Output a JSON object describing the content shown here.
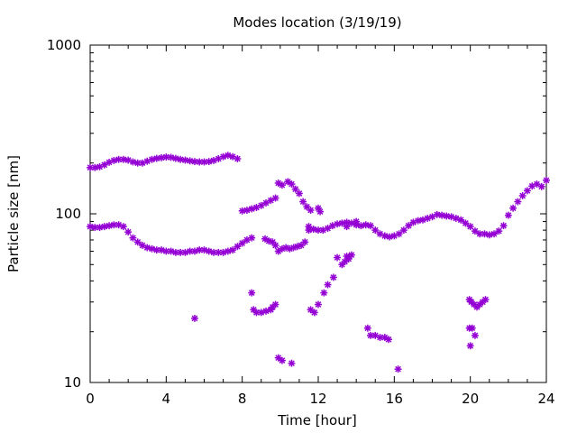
{
  "chart_data": {
    "type": "scatter",
    "title": "Modes location (3/19/19)",
    "xlabel": "Time [hour]",
    "ylabel": "Particle size [nm]",
    "xlim": [
      0,
      24
    ],
    "ylim": [
      10,
      1000
    ],
    "yscale": "log",
    "grid": false,
    "legend": "none",
    "marker_color": "#9400d3",
    "xticks": [
      0,
      4,
      8,
      12,
      16,
      20,
      24
    ],
    "xtick_labels": [
      "0",
      "4",
      "8",
      "12",
      "16",
      "20",
      "24"
    ],
    "yticks": [
      10,
      100,
      1000
    ],
    "ytick_labels": [
      "10",
      "100",
      "1000"
    ],
    "series": [
      {
        "points": [
          [
            0.0,
            188
          ],
          [
            0.25,
            188
          ],
          [
            0.5,
            190
          ],
          [
            0.75,
            195
          ],
          [
            1.0,
            202
          ],
          [
            1.25,
            207
          ],
          [
            1.5,
            210
          ],
          [
            1.75,
            210
          ],
          [
            2.0,
            208
          ],
          [
            2.25,
            203
          ],
          [
            2.5,
            200
          ],
          [
            2.75,
            200
          ],
          [
            3.0,
            205
          ],
          [
            3.25,
            210
          ],
          [
            3.5,
            213
          ],
          [
            3.75,
            215
          ],
          [
            4.0,
            217
          ],
          [
            4.25,
            216
          ],
          [
            4.5,
            213
          ],
          [
            4.75,
            210
          ],
          [
            5.0,
            208
          ],
          [
            5.25,
            206
          ],
          [
            5.5,
            204
          ],
          [
            5.75,
            203
          ],
          [
            6.0,
            203
          ],
          [
            6.25,
            204
          ],
          [
            6.5,
            207
          ],
          [
            6.75,
            212
          ],
          [
            7.0,
            218
          ],
          [
            7.25,
            222
          ],
          [
            7.5,
            218
          ],
          [
            7.75,
            212
          ],
          [
            0.0,
            84
          ],
          [
            0.25,
            83
          ],
          [
            0.5,
            83
          ],
          [
            0.75,
            84
          ],
          [
            1.0,
            85
          ],
          [
            1.25,
            86
          ],
          [
            1.5,
            86
          ],
          [
            1.75,
            84
          ],
          [
            2.0,
            78
          ],
          [
            2.25,
            72
          ],
          [
            2.5,
            68
          ],
          [
            2.75,
            65
          ],
          [
            3.0,
            63
          ],
          [
            3.25,
            62
          ],
          [
            3.5,
            61
          ],
          [
            3.75,
            61
          ],
          [
            4.0,
            60
          ],
          [
            4.25,
            60
          ],
          [
            4.5,
            59
          ],
          [
            4.75,
            59
          ],
          [
            5.0,
            59
          ],
          [
            5.25,
            60
          ],
          [
            5.5,
            60
          ],
          [
            5.75,
            61
          ],
          [
            6.0,
            61
          ],
          [
            6.25,
            60
          ],
          [
            6.5,
            59
          ],
          [
            6.75,
            59
          ],
          [
            7.0,
            59
          ],
          [
            7.25,
            60
          ],
          [
            7.5,
            61
          ],
          [
            7.75,
            64
          ],
          [
            8.0,
            67
          ],
          [
            8.25,
            70
          ],
          [
            8.5,
            72
          ],
          [
            8.0,
            104
          ],
          [
            8.25,
            105
          ],
          [
            8.5,
            107
          ],
          [
            8.75,
            109
          ],
          [
            9.0,
            112
          ],
          [
            9.25,
            116
          ],
          [
            9.5,
            120
          ],
          [
            9.75,
            124
          ],
          [
            9.9,
            152
          ],
          [
            10.1,
            148
          ],
          [
            10.4,
            155
          ],
          [
            10.6,
            150
          ],
          [
            10.8,
            140
          ],
          [
            11.0,
            132
          ],
          [
            11.2,
            118
          ],
          [
            11.4,
            110
          ],
          [
            11.6,
            105
          ],
          [
            12.0,
            108
          ],
          [
            12.1,
            103
          ],
          [
            8.5,
            34
          ],
          [
            8.6,
            27
          ],
          [
            8.75,
            26
          ],
          [
            9.0,
            26
          ],
          [
            9.25,
            26.5
          ],
          [
            9.5,
            27
          ],
          [
            9.6,
            28
          ],
          [
            9.75,
            29
          ],
          [
            9.2,
            71
          ],
          [
            9.4,
            69
          ],
          [
            9.6,
            68
          ],
          [
            9.75,
            65
          ],
          [
            9.9,
            60
          ],
          [
            10.1,
            62
          ],
          [
            10.3,
            63
          ],
          [
            10.5,
            62
          ],
          [
            10.7,
            63
          ],
          [
            10.9,
            64
          ],
          [
            11.1,
            65
          ],
          [
            11.3,
            68
          ],
          [
            11.5,
            80
          ],
          [
            9.9,
            14
          ],
          [
            10.1,
            13.5
          ],
          [
            10.6,
            13
          ],
          [
            5.5,
            24
          ],
          [
            16.2,
            12
          ],
          [
            11.5,
            84
          ],
          [
            11.75,
            81
          ],
          [
            12.0,
            80
          ],
          [
            12.25,
            80
          ],
          [
            12.5,
            82
          ],
          [
            12.75,
            85
          ],
          [
            13.0,
            87
          ],
          [
            13.25,
            88
          ],
          [
            13.5,
            89
          ],
          [
            13.75,
            88
          ],
          [
            14.0,
            86
          ],
          [
            14.25,
            85
          ],
          [
            14.5,
            86
          ],
          [
            14.75,
            85
          ],
          [
            15.0,
            80
          ],
          [
            15.25,
            76
          ],
          [
            15.5,
            74
          ],
          [
            15.75,
            73
          ],
          [
            16.0,
            74
          ],
          [
            16.25,
            76
          ],
          [
            16.5,
            80
          ],
          [
            16.75,
            85
          ],
          [
            17.0,
            89
          ],
          [
            17.25,
            91
          ],
          [
            17.5,
            92
          ],
          [
            17.75,
            94
          ],
          [
            18.0,
            96
          ],
          [
            18.25,
            99
          ],
          [
            18.5,
            98
          ],
          [
            18.75,
            97
          ],
          [
            19.0,
            96
          ],
          [
            19.25,
            94
          ],
          [
            19.5,
            92
          ],
          [
            19.75,
            88
          ],
          [
            20.0,
            84
          ],
          [
            20.25,
            79
          ],
          [
            20.5,
            76
          ],
          [
            20.75,
            76
          ],
          [
            21.0,
            75
          ],
          [
            21.25,
            76
          ],
          [
            21.5,
            79
          ],
          [
            21.75,
            85
          ],
          [
            22.0,
            98
          ],
          [
            22.25,
            108
          ],
          [
            22.5,
            118
          ],
          [
            22.75,
            128
          ],
          [
            23.0,
            137
          ],
          [
            23.25,
            146
          ],
          [
            23.5,
            150
          ],
          [
            23.75,
            145
          ],
          [
            24.0,
            158
          ],
          [
            11.6,
            27
          ],
          [
            11.8,
            26
          ],
          [
            12.0,
            29
          ],
          [
            12.3,
            34
          ],
          [
            12.5,
            38
          ],
          [
            12.8,
            42
          ],
          [
            13.0,
            55
          ],
          [
            13.25,
            50
          ],
          [
            13.4,
            52
          ],
          [
            13.5,
            56
          ],
          [
            13.6,
            54
          ],
          [
            13.75,
            57
          ],
          [
            13.5,
            84
          ],
          [
            14.0,
            90
          ],
          [
            14.6,
            21
          ],
          [
            14.75,
            19
          ],
          [
            15.0,
            19
          ],
          [
            15.25,
            18.5
          ],
          [
            15.5,
            18.5
          ],
          [
            15.7,
            18
          ],
          [
            19.95,
            31
          ],
          [
            20.05,
            30
          ],
          [
            20.2,
            29
          ],
          [
            20.35,
            28
          ],
          [
            20.5,
            29
          ],
          [
            20.65,
            30
          ],
          [
            20.8,
            31
          ],
          [
            19.95,
            21
          ],
          [
            20.1,
            21
          ],
          [
            20.25,
            19
          ],
          [
            20.0,
            16.5
          ]
        ]
      }
    ]
  }
}
